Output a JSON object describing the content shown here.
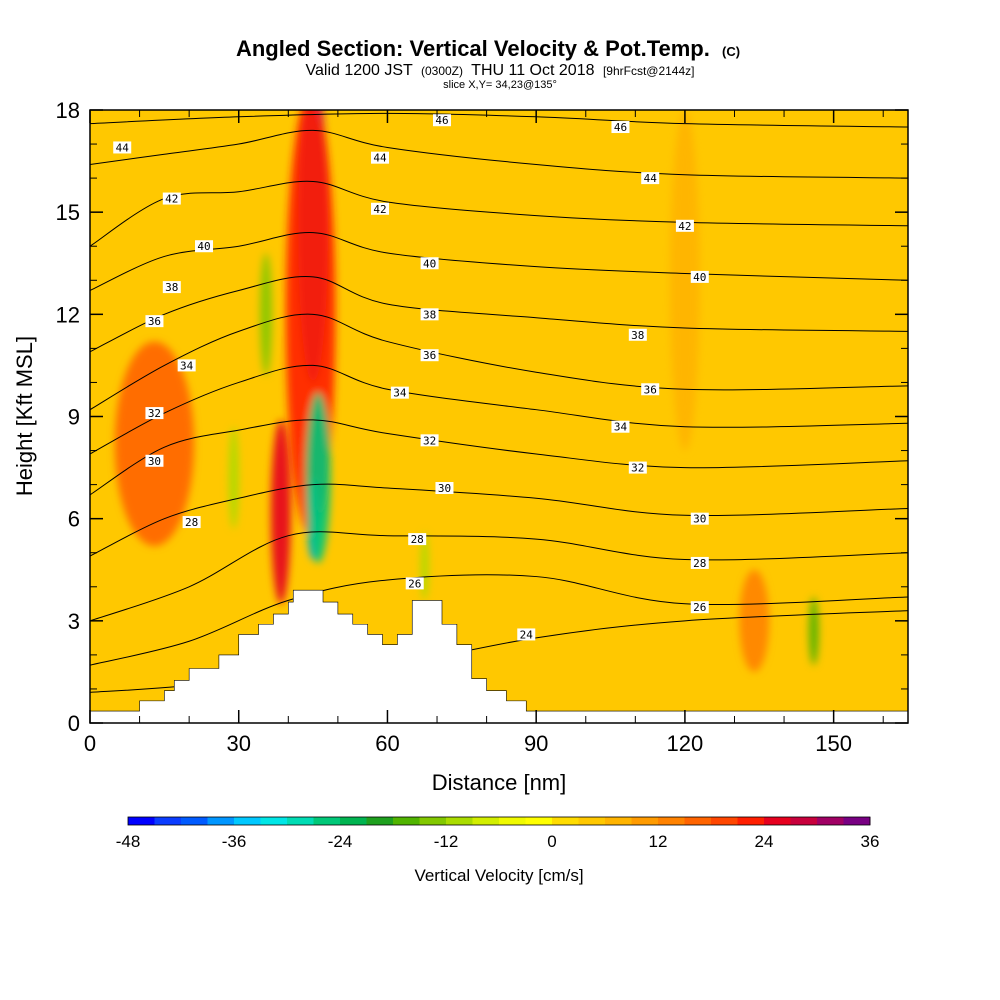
{
  "chart_data": {
    "type": "heatmap",
    "title": "Angled Section: Vertical Velocity & Pot.Temp.",
    "title_suffix": "(C)",
    "subtitle_parts": [
      "Valid 1200 JST",
      "(0300Z)",
      "THU 11 Oct 2018",
      "[9hrFcst@2144z]"
    ],
    "slice_label": "slice X,Y= 34,23@135°",
    "xlabel": "Distance [nm]",
    "ylabel": "Height [Kft MSL]",
    "xlim": [
      0,
      165
    ],
    "ylim": [
      0,
      18
    ],
    "xticks": [
      0,
      30,
      60,
      90,
      120,
      150
    ],
    "yticks": [
      0,
      3,
      6,
      9,
      12,
      15,
      18
    ],
    "colorbar": {
      "title": "Vertical Velocity [cm/s]",
      "ticks": [
        -48,
        -36,
        -24,
        -12,
        0,
        12,
        24,
        36
      ],
      "levels": [
        -48,
        -45,
        -42,
        -39,
        -36,
        -33,
        -30,
        -27,
        -24,
        -21,
        -18,
        -15,
        -12,
        -9,
        -6,
        -3,
        0,
        3,
        6,
        9,
        12,
        15,
        18,
        21,
        24,
        27,
        30,
        33,
        36
      ],
      "colors": [
        "#0000ff",
        "#0a3cff",
        "#005aff",
        "#0096ff",
        "#00c8ff",
        "#00e6e6",
        "#00dcb4",
        "#00c878",
        "#00b450",
        "#1ea01e",
        "#50b400",
        "#82c800",
        "#aadc00",
        "#d2ee00",
        "#f0fa00",
        "#ffff00",
        "#ffdc00",
        "#ffc800",
        "#ffb400",
        "#ff9b00",
        "#ff8200",
        "#ff6400",
        "#ff4600",
        "#ff1e00",
        "#e6001e",
        "#c8003c",
        "#a00064",
        "#780082"
      ]
    },
    "terrain": [
      [
        0,
        0.35
      ],
      [
        10,
        0.35
      ],
      [
        10,
        0.65
      ],
      [
        15,
        0.65
      ],
      [
        15,
        0.95
      ],
      [
        17,
        0.95
      ],
      [
        17,
        1.25
      ],
      [
        20,
        1.25
      ],
      [
        20,
        1.6
      ],
      [
        26,
        1.6
      ],
      [
        26,
        2.0
      ],
      [
        30,
        2.0
      ],
      [
        30,
        2.6
      ],
      [
        34,
        2.6
      ],
      [
        34,
        2.9
      ],
      [
        37,
        2.9
      ],
      [
        37,
        3.2
      ],
      [
        40,
        3.2
      ],
      [
        40,
        3.55
      ],
      [
        41,
        3.55
      ],
      [
        41,
        3.9
      ],
      [
        47,
        3.9
      ],
      [
        47,
        3.55
      ],
      [
        50,
        3.55
      ],
      [
        50,
        3.2
      ],
      [
        53,
        3.2
      ],
      [
        53,
        2.9
      ],
      [
        56,
        2.9
      ],
      [
        56,
        2.6
      ],
      [
        59,
        2.6
      ],
      [
        59,
        2.3
      ],
      [
        62,
        2.3
      ],
      [
        62,
        2.6
      ],
      [
        65,
        2.6
      ],
      [
        65,
        3.6
      ],
      [
        71,
        3.6
      ],
      [
        71,
        2.9
      ],
      [
        74,
        2.9
      ],
      [
        74,
        2.3
      ],
      [
        77,
        2.3
      ],
      [
        77,
        1.3
      ],
      [
        80,
        1.3
      ],
      [
        80,
        0.95
      ],
      [
        84,
        0.95
      ],
      [
        84,
        0.65
      ],
      [
        88,
        0.65
      ],
      [
        88,
        0.35
      ],
      [
        165,
        0.35
      ]
    ],
    "velocity_features": [
      {
        "x": 45,
        "y": 14.5,
        "rx": 3,
        "ry": 4.5,
        "value": 36
      },
      {
        "x": 44.5,
        "y": 12,
        "rx": 5,
        "ry": 6.5,
        "value": 21
      },
      {
        "x": 38.5,
        "y": 6.2,
        "rx": 2,
        "ry": 2.7,
        "value": 24
      },
      {
        "x": 45,
        "y": 6,
        "rx": 1.2,
        "ry": 1.2,
        "value": -39
      },
      {
        "x": 46,
        "y": 7.2,
        "rx": 2.5,
        "ry": 2.5,
        "value": -27
      },
      {
        "x": 35.5,
        "y": 12,
        "rx": 1.2,
        "ry": 1.8,
        "value": -15
      },
      {
        "x": 13,
        "y": 8.2,
        "rx": 8,
        "ry": 3,
        "value": 15
      },
      {
        "x": 29,
        "y": 7.2,
        "rx": 1,
        "ry": 1.5,
        "value": -12
      },
      {
        "x": 67.5,
        "y": 4.6,
        "rx": 0.8,
        "ry": 1,
        "value": -12
      },
      {
        "x": 146,
        "y": 2.7,
        "rx": 1,
        "ry": 1,
        "value": -18
      },
      {
        "x": 134,
        "y": 3,
        "rx": 3,
        "ry": 1.5,
        "value": 12
      },
      {
        "x": 120,
        "y": 13,
        "rx": 3,
        "ry": 5,
        "value": 6
      }
    ],
    "isentropes": [
      {
        "label": "24",
        "points": [
          [
            0,
            0.9
          ],
          [
            20,
            1.1
          ],
          [
            60,
            1.7
          ],
          [
            90,
            2.5
          ],
          [
            120,
            3.0
          ],
          [
            165,
            3.3
          ]
        ]
      },
      {
        "label": "26",
        "points": [
          [
            0,
            1.7
          ],
          [
            20,
            2.4
          ],
          [
            40,
            3.6
          ],
          [
            60,
            4.2
          ],
          [
            90,
            4.3
          ],
          [
            120,
            3.5
          ],
          [
            165,
            3.7
          ]
        ]
      },
      {
        "label": "28",
        "points": [
          [
            0,
            3.0
          ],
          [
            20,
            4.0
          ],
          [
            40,
            5.5
          ],
          [
            60,
            5.5
          ],
          [
            90,
            5.4
          ],
          [
            120,
            4.8
          ],
          [
            165,
            5.0
          ]
        ]
      },
      {
        "label": "30",
        "points": [
          [
            0,
            4.9
          ],
          [
            15,
            6.0
          ],
          [
            30,
            6.6
          ],
          [
            45,
            7.0
          ],
          [
            60,
            6.9
          ],
          [
            90,
            6.6
          ],
          [
            120,
            6.1
          ],
          [
            165,
            6.3
          ]
        ]
      },
      {
        "label": "32",
        "points": [
          [
            0,
            6.7
          ],
          [
            15,
            8.1
          ],
          [
            30,
            8.6
          ],
          [
            45,
            8.9
          ],
          [
            60,
            8.5
          ],
          [
            90,
            7.9
          ],
          [
            120,
            7.5
          ],
          [
            165,
            7.7
          ]
        ]
      },
      {
        "label": "34",
        "points": [
          [
            0,
            7.9
          ],
          [
            15,
            9.1
          ],
          [
            30,
            10.0
          ],
          [
            45,
            10.5
          ],
          [
            60,
            9.8
          ],
          [
            90,
            9.2
          ],
          [
            120,
            8.7
          ],
          [
            165,
            8.8
          ]
        ]
      },
      {
        "label": "36",
        "points": [
          [
            0,
            9.2
          ],
          [
            15,
            10.5
          ],
          [
            30,
            11.5
          ],
          [
            45,
            12.0
          ],
          [
            60,
            11.2
          ],
          [
            90,
            10.3
          ],
          [
            120,
            9.8
          ],
          [
            165,
            9.9
          ]
        ]
      },
      {
        "label": "38",
        "points": [
          [
            0,
            10.9
          ],
          [
            15,
            12.0
          ],
          [
            30,
            12.7
          ],
          [
            45,
            13.1
          ],
          [
            60,
            12.3
          ],
          [
            90,
            11.9
          ],
          [
            120,
            11.6
          ],
          [
            165,
            11.5
          ]
        ]
      },
      {
        "label": "40",
        "points": [
          [
            0,
            12.7
          ],
          [
            15,
            13.7
          ],
          [
            30,
            14.0
          ],
          [
            45,
            14.4
          ],
          [
            60,
            13.8
          ],
          [
            90,
            13.4
          ],
          [
            120,
            13.2
          ],
          [
            165,
            13.0
          ]
        ]
      },
      {
        "label": "42",
        "points": [
          [
            0,
            14.0
          ],
          [
            15,
            15.4
          ],
          [
            30,
            15.6
          ],
          [
            45,
            15.9
          ],
          [
            60,
            15.3
          ],
          [
            90,
            14.9
          ],
          [
            120,
            14.7
          ],
          [
            165,
            14.6
          ]
        ]
      },
      {
        "label": "44",
        "points": [
          [
            0,
            16.4
          ],
          [
            15,
            16.7
          ],
          [
            30,
            17.0
          ],
          [
            45,
            17.4
          ],
          [
            60,
            16.9
          ],
          [
            90,
            16.4
          ],
          [
            120,
            16.1
          ],
          [
            165,
            16.0
          ]
        ]
      },
      {
        "label": "46",
        "points": [
          [
            0,
            17.6
          ],
          [
            30,
            17.8
          ],
          [
            60,
            17.9
          ],
          [
            90,
            17.8
          ],
          [
            120,
            17.6
          ],
          [
            165,
            17.5
          ]
        ]
      }
    ],
    "contour_labels": [
      {
        "text": "46",
        "x": 71,
        "y": 17.7
      },
      {
        "text": "46",
        "x": 107,
        "y": 17.5
      },
      {
        "text": "44",
        "x": 6.5,
        "y": 16.9
      },
      {
        "text": "44",
        "x": 58.5,
        "y": 16.6
      },
      {
        "text": "44",
        "x": 113,
        "y": 16.0
      },
      {
        "text": "42",
        "x": 16.5,
        "y": 15.4
      },
      {
        "text": "42",
        "x": 58.5,
        "y": 15.1
      },
      {
        "text": "42",
        "x": 120,
        "y": 14.6
      },
      {
        "text": "40",
        "x": 23,
        "y": 14.0
      },
      {
        "text": "40",
        "x": 68.5,
        "y": 13.5
      },
      {
        "text": "40",
        "x": 123,
        "y": 13.1
      },
      {
        "text": "38",
        "x": 16.5,
        "y": 12.8
      },
      {
        "text": "38",
        "x": 68.5,
        "y": 12.0
      },
      {
        "text": "38",
        "x": 110.5,
        "y": 11.4
      },
      {
        "text": "36",
        "x": 13,
        "y": 11.8
      },
      {
        "text": "36",
        "x": 68.5,
        "y": 10.8
      },
      {
        "text": "36",
        "x": 113,
        "y": 9.8
      },
      {
        "text": "34",
        "x": 19.5,
        "y": 10.5
      },
      {
        "text": "34",
        "x": 62.5,
        "y": 9.7
      },
      {
        "text": "34",
        "x": 107,
        "y": 8.7
      },
      {
        "text": "32",
        "x": 13,
        "y": 9.1
      },
      {
        "text": "32",
        "x": 68.5,
        "y": 8.3
      },
      {
        "text": "32",
        "x": 110.5,
        "y": 7.5
      },
      {
        "text": "30",
        "x": 13,
        "y": 7.7
      },
      {
        "text": "30",
        "x": 71.5,
        "y": 6.9
      },
      {
        "text": "30",
        "x": 123,
        "y": 6.0
      },
      {
        "text": "28",
        "x": 20.5,
        "y": 5.9
      },
      {
        "text": "28",
        "x": 66,
        "y": 5.4
      },
      {
        "text": "28",
        "x": 123,
        "y": 4.7
      },
      {
        "text": "26",
        "x": 65.5,
        "y": 4.1
      },
      {
        "text": "26",
        "x": 123,
        "y": 3.4
      },
      {
        "text": "24",
        "x": 88,
        "y": 2.6
      }
    ],
    "grid": false
  }
}
